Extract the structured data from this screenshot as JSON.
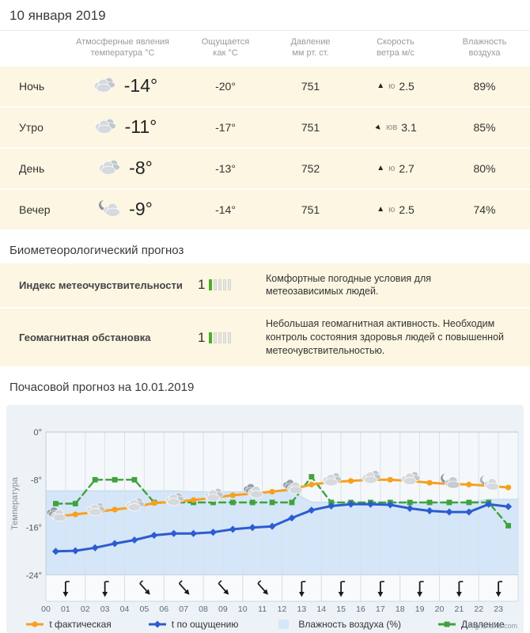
{
  "page": {
    "date_title": "10 января 2019"
  },
  "forecast_table": {
    "headers": [
      {
        "line1": "Атмосферные явления",
        "line2": "температура °C"
      },
      {
        "line1": "Ощущается",
        "line2": "как °C"
      },
      {
        "line1": "Давление",
        "line2": "мм рт. ст."
      },
      {
        "line1": "Скорость",
        "line2": "ветра м/с"
      },
      {
        "line1": "Влажность",
        "line2": "воздуха"
      }
    ],
    "rows": [
      {
        "time": "Ночь",
        "icon": "cloudy",
        "temp": "-14°",
        "feels": "-20°",
        "pressure": "751",
        "wind_arrow": "up",
        "wind_dir": "ю",
        "wind_speed": "2.5",
        "humidity": "89%"
      },
      {
        "time": "Утро",
        "icon": "cloudy",
        "temp": "-11°",
        "feels": "-17°",
        "pressure": "751",
        "wind_arrow": "down-right",
        "wind_dir": "юв",
        "wind_speed": "3.1",
        "humidity": "85%"
      },
      {
        "time": "День",
        "icon": "cloudy",
        "temp": "-8°",
        "feels": "-13°",
        "pressure": "752",
        "wind_arrow": "up",
        "wind_dir": "ю",
        "wind_speed": "2.7",
        "humidity": "80%"
      },
      {
        "time": "Вечер",
        "icon": "partly-cloudy-night",
        "temp": "-9°",
        "feels": "-14°",
        "pressure": "751",
        "wind_arrow": "up",
        "wind_dir": "ю",
        "wind_speed": "2.5",
        "humidity": "74%"
      }
    ]
  },
  "bio": {
    "title": "Биометеорологический прогноз",
    "rows": [
      {
        "label": "Индекс метеочувствительности",
        "value": "1",
        "scale_max": 5,
        "filled": 1,
        "desc": "Комфортные погодные условия для метеозависимых людей."
      },
      {
        "label": "Геомагнитная обстановка",
        "value": "1",
        "scale_max": 5,
        "filled": 1,
        "desc": "Небольшая геомагнитная активность. Необходим контроль состояния здоровья людей с повышенной метеочувствительностью."
      }
    ]
  },
  "hourly": {
    "title": "Почасовой прогноз на 10.01.2019",
    "credit": "Highcharts.com"
  },
  "chart_data": {
    "type": "line",
    "title": "",
    "ylabel": "Температура",
    "ylim": [
      -24,
      0
    ],
    "yticks": [
      {
        "label": "0°",
        "value": 0
      },
      {
        "label": "-8°",
        "value": -8
      },
      {
        "label": "-16°",
        "value": -16
      },
      {
        "label": "-24°",
        "value": -24
      }
    ],
    "hours": [
      "00",
      "01",
      "02",
      "03",
      "04",
      "05",
      "06",
      "07",
      "08",
      "09",
      "10",
      "11",
      "12",
      "13",
      "14",
      "15",
      "16",
      "17",
      "18",
      "19",
      "20",
      "21",
      "22",
      "23"
    ],
    "series": [
      {
        "name": "t фактическая",
        "type": "line",
        "marker": "circle",
        "color": "#f8a01e",
        "values": [
          -14.2,
          -13.8,
          -13.4,
          -13,
          -12.6,
          -11.9,
          -11.7,
          -11.4,
          -11,
          -10.6,
          -10.3,
          -10,
          -9.6,
          -8.8,
          -8.4,
          -8.2,
          -8,
          -8,
          -8.2,
          -8.5,
          -8.7,
          -8.8,
          -9,
          -9.3
        ]
      },
      {
        "name": "t по ощущению",
        "type": "line",
        "marker": "diamond",
        "color": "#2d5bd1",
        "values": [
          -20,
          -19.9,
          -19.4,
          -18.7,
          -18.1,
          -17.3,
          -17,
          -17,
          -16.8,
          -16.3,
          -16,
          -15.8,
          -14.4,
          -13.1,
          -12.4,
          -12.1,
          -12.1,
          -12.2,
          -12.8,
          -13.2,
          -13.4,
          -13.4,
          -12.1,
          -12.5
        ]
      },
      {
        "name": "Влажность воздуха (%)",
        "type": "area",
        "color": "#d4e6f7",
        "values": [
          89,
          89,
          89,
          89,
          89,
          89,
          89,
          88,
          88,
          88,
          88,
          88,
          88,
          77,
          77,
          77,
          77,
          77,
          77,
          77,
          77,
          77,
          80,
          80
        ]
      },
      {
        "name": "Давление",
        "type": "line",
        "marker": "square",
        "dashed": true,
        "color": "#3fa23c",
        "values_mm": [
          751,
          751,
          752,
          752,
          752,
          751,
          751,
          751,
          751,
          751,
          751,
          751,
          751,
          752,
          751,
          751,
          751,
          751,
          751,
          751,
          751,
          751,
          751,
          750
        ],
        "plot_values": [
          -12,
          -12,
          -8,
          -8,
          -8,
          -11.8,
          -11.8,
          -11.8,
          -11.8,
          -11.8,
          -11.8,
          -11.8,
          -11.8,
          -7.5,
          -11.8,
          -11.8,
          -11.8,
          -11.8,
          -11.8,
          -11.8,
          -11.8,
          -11.8,
          -11.8,
          -15.7
        ]
      }
    ],
    "weather_icons": [
      {
        "hour": 0,
        "type": "cloud-dark"
      },
      {
        "hour": 2,
        "type": "cloud-light"
      },
      {
        "hour": 4,
        "type": "cloud-light"
      },
      {
        "hour": 6,
        "type": "cloud-light"
      },
      {
        "hour": 8,
        "type": "cloud-light"
      },
      {
        "hour": 10,
        "type": "cloud-dark"
      },
      {
        "hour": 12,
        "type": "cloud-dark"
      },
      {
        "hour": 14,
        "type": "cloud-light"
      },
      {
        "hour": 16,
        "type": "cloud-light"
      },
      {
        "hour": 18,
        "type": "cloud-light"
      },
      {
        "hour": 20,
        "type": "moon-cloud-dark"
      },
      {
        "hour": 22,
        "type": "moon-cloud-light"
      }
    ],
    "wind_arrows": [
      {
        "hours": "00-01",
        "dir": "s"
      },
      {
        "hours": "02-03",
        "dir": "s"
      },
      {
        "hours": "04-05",
        "dir": "se"
      },
      {
        "hours": "06-07",
        "dir": "se"
      },
      {
        "hours": "08-09",
        "dir": "se"
      },
      {
        "hours": "10-11",
        "dir": "se"
      },
      {
        "hours": "12-13",
        "dir": "s"
      },
      {
        "hours": "14-15",
        "dir": "s"
      },
      {
        "hours": "16-17",
        "dir": "s"
      },
      {
        "hours": "18-19",
        "dir": "s"
      },
      {
        "hours": "20-21",
        "dir": "s"
      },
      {
        "hours": "22-23",
        "dir": "s"
      }
    ],
    "grid": true,
    "legend_position": "bottom"
  }
}
